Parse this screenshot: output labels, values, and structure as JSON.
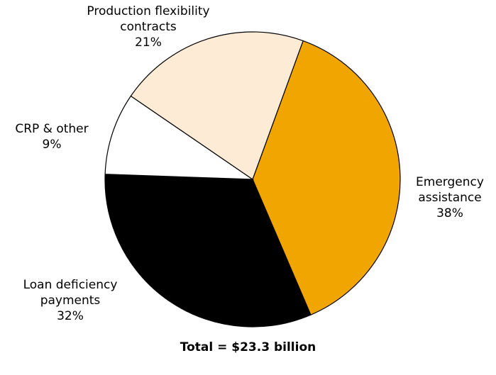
{
  "chart_data": {
    "type": "pie",
    "title": "",
    "footer": "Total = $23.3 billion",
    "slices": [
      {
        "label_lines": [
          "Emergency",
          "assistance"
        ],
        "percent_label": "38%",
        "value": 38,
        "color": "#F0A500"
      },
      {
        "label_lines": [
          "Loan deficiency",
          "payments"
        ],
        "percent_label": "32%",
        "value": 32,
        "color": "#000000"
      },
      {
        "label_lines": [
          "CRP & other"
        ],
        "percent_label": "9%",
        "value": 9,
        "color": "#FFFFFF"
      },
      {
        "label_lines": [
          "Production flexibility",
          "contracts"
        ],
        "percent_label": "21%",
        "value": 21,
        "color": "#FDEBD6"
      }
    ]
  }
}
